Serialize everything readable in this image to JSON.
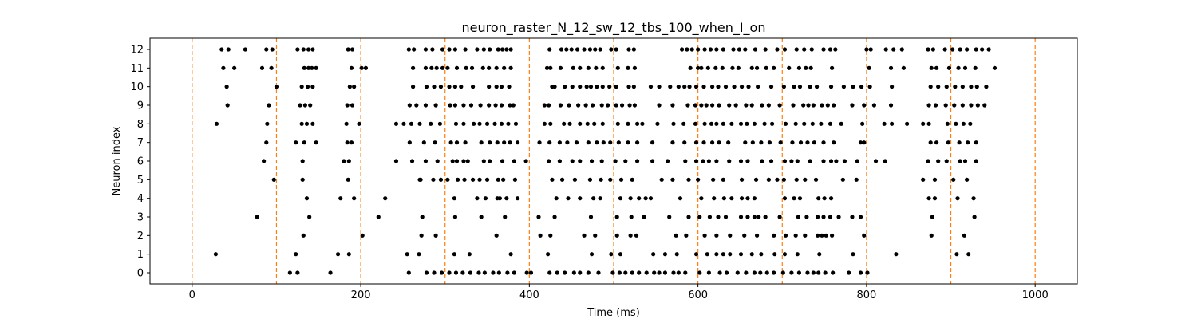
{
  "chart_data": {
    "type": "scatter",
    "title": "neuron_raster_N_12_sw_12_tbs_100_when_I_on",
    "xlabel": "Time (ms)",
    "ylabel": "Neuron index",
    "xlim": [
      -50,
      1050
    ],
    "ylim": [
      -0.6,
      12.6
    ],
    "xticks": [
      0,
      200,
      400,
      600,
      800,
      1000
    ],
    "yticks": [
      0,
      1,
      2,
      3,
      4,
      5,
      6,
      7,
      8,
      9,
      10,
      11,
      12
    ],
    "grid": false,
    "marker_color": "#000000",
    "vline_color": "#ff7f0e",
    "vlines": [
      0,
      100,
      200,
      300,
      400,
      500,
      600,
      700,
      800,
      900,
      1000
    ],
    "spikes": [
      {
        "neuron": 12,
        "times": [
          35,
          43,
          63,
          88,
          95,
          125,
          132,
          138,
          143,
          185,
          190,
          257,
          263,
          277,
          285,
          297,
          305,
          312,
          324,
          338,
          346,
          353,
          363,
          368,
          373,
          378,
          424,
          438,
          444,
          450,
          457,
          465,
          472,
          478,
          484,
          497,
          503,
          518,
          524,
          581,
          587,
          593,
          600,
          608,
          615,
          622,
          630,
          642,
          649,
          656,
          668,
          680,
          694,
          703,
          717,
          726,
          735,
          749,
          757,
          763,
          800,
          805,
          823,
          832,
          842,
          873,
          879,
          893,
          902,
          911,
          919,
          930,
          937,
          945
        ]
      },
      {
        "neuron": 11,
        "times": [
          37,
          50,
          83,
          94,
          133,
          138,
          142,
          147,
          189,
          201,
          206,
          262,
          277,
          284,
          290,
          297,
          303,
          314,
          325,
          332,
          345,
          352,
          361,
          370,
          378,
          421,
          425,
          437,
          452,
          460,
          470,
          479,
          487,
          505,
          517,
          525,
          591,
          600,
          604,
          612,
          621,
          629,
          641,
          648,
          664,
          670,
          681,
          690,
          708,
          720,
          728,
          734,
          759,
          803,
          829,
          844,
          877,
          883,
          898,
          909,
          917,
          929,
          952
        ]
      },
      {
        "neuron": 10,
        "times": [
          41,
          100,
          130,
          137,
          143,
          187,
          192,
          262,
          278,
          287,
          295,
          305,
          312,
          319,
          333,
          352,
          361,
          367,
          376,
          427,
          430,
          442,
          451,
          460,
          468,
          473,
          480,
          487,
          495,
          503,
          518,
          524,
          544,
          554,
          567,
          577,
          584,
          590,
          598,
          607,
          617,
          624,
          633,
          643,
          652,
          660,
          671,
          687,
          702,
          714,
          721,
          733,
          741,
          758,
          773,
          784,
          794,
          804,
          830,
          876,
          885,
          895,
          905,
          914,
          924,
          931,
          942
        ]
      },
      {
        "neuron": 9,
        "times": [
          42,
          91,
          128,
          134,
          140,
          184,
          190,
          258,
          266,
          277,
          289,
          306,
          312,
          322,
          331,
          342,
          352,
          360,
          367,
          377,
          381,
          418,
          423,
          437,
          447,
          458,
          467,
          475,
          486,
          493,
          503,
          510,
          519,
          525,
          554,
          570,
          588,
          597,
          604,
          610,
          617,
          625,
          637,
          645,
          657,
          664,
          676,
          684,
          697,
          713,
          725,
          731,
          737,
          747,
          754,
          761,
          783,
          797,
          809,
          829,
          874,
          882,
          894,
          904,
          914,
          924,
          932,
          940
        ]
      },
      {
        "neuron": 8,
        "times": [
          29,
          89,
          130,
          136,
          143,
          183,
          198,
          242,
          251,
          260,
          270,
          283,
          294,
          313,
          322,
          334,
          341,
          350,
          359,
          367,
          375,
          384,
          418,
          425,
          441,
          448,
          460,
          469,
          477,
          487,
          505,
          517,
          528,
          534,
          552,
          571,
          583,
          597,
          608,
          616,
          622,
          630,
          640,
          651,
          658,
          667,
          679,
          688,
          704,
          716,
          726,
          736,
          746,
          757,
          770,
          795,
          821,
          830,
          848,
          867,
          874,
          896,
          906,
          915,
          923
        ]
      },
      {
        "neuron": 7,
        "times": [
          88,
          123,
          133,
          147,
          184,
          189,
          258,
          275,
          288,
          307,
          314,
          324,
          343,
          353,
          362,
          370,
          377,
          386,
          412,
          424,
          436,
          445,
          456,
          470,
          480,
          488,
          496,
          506,
          517,
          528,
          546,
          570,
          584,
          598,
          607,
          617,
          625,
          636,
          656,
          665,
          675,
          685,
          698,
          712,
          722,
          730,
          738,
          749,
          761,
          793,
          797,
          876,
          883,
          897,
          910,
          920,
          930
        ]
      },
      {
        "neuron": 6,
        "times": [
          85,
          131,
          180,
          186,
          242,
          261,
          277,
          291,
          309,
          314,
          322,
          327,
          346,
          353,
          368,
          382,
          396,
          423,
          436,
          451,
          460,
          474,
          486,
          502,
          514,
          528,
          546,
          564,
          585,
          598,
          606,
          613,
          622,
          637,
          651,
          659,
          676,
          687,
          703,
          711,
          718,
          733,
          749,
          758,
          764,
          774,
          789,
          811,
          822,
          873,
          885,
          895,
          911,
          917,
          930
        ]
      },
      {
        "neuron": 5,
        "times": [
          97,
          131,
          185,
          270,
          271,
          286,
          295,
          303,
          315,
          323,
          333,
          341,
          350,
          363,
          369,
          383,
          427,
          439,
          454,
          472,
          485,
          496,
          509,
          522,
          557,
          570,
          589,
          600,
          618,
          630,
          652,
          669,
          684,
          694,
          702,
          717,
          727,
          740,
          772,
          788,
          867,
          881,
          903,
          919
        ]
      },
      {
        "neuron": 4,
        "times": [
          136,
          176,
          192,
          229,
          311,
          338,
          348,
          362,
          365,
          373,
          386,
          432,
          446,
          460,
          476,
          484,
          508,
          520,
          530,
          538,
          544,
          579,
          604,
          619,
          631,
          640,
          652,
          659,
          667,
          703,
          714,
          721,
          743,
          750,
          758,
          874,
          881,
          908,
          927
        ]
      },
      {
        "neuron": 3,
        "times": [
          77,
          139,
          221,
          273,
          312,
          343,
          371,
          411,
          430,
          473,
          504,
          521,
          536,
          566,
          589,
          602,
          614,
          624,
          633,
          651,
          659,
          667,
          672,
          680,
          697,
          719,
          729,
          742,
          749,
          757,
          767,
          783,
          793,
          878,
          928
        ]
      },
      {
        "neuron": 2,
        "times": [
          132,
          202,
          272,
          289,
          361,
          413,
          425,
          465,
          478,
          504,
          520,
          527,
          574,
          586,
          608,
          622,
          638,
          655,
          670,
          690,
          704,
          716,
          727,
          742,
          747,
          752,
          759,
          797,
          877,
          916
        ]
      },
      {
        "neuron": 1,
        "times": [
          28,
          123,
          173,
          186,
          255,
          269,
          311,
          329,
          378,
          422,
          474,
          497,
          508,
          547,
          561,
          575,
          598,
          611,
          622,
          630,
          638,
          651,
          664,
          675,
          691,
          703,
          718,
          744,
          784,
          835,
          907,
          921
        ]
      },
      {
        "neuron": 0,
        "times": [
          116,
          125,
          164,
          257,
          278,
          287,
          296,
          305,
          313,
          321,
          330,
          340,
          347,
          357,
          364,
          374,
          382,
          397,
          402,
          424,
          433,
          442,
          453,
          460,
          470,
          482,
          499,
          507,
          514,
          522,
          530,
          539,
          548,
          554,
          561,
          571,
          577,
          585,
          602,
          613,
          626,
          634,
          647,
          657,
          667,
          674,
          682,
          690,
          701,
          711,
          720,
          730,
          737,
          743,
          751,
          760,
          779,
          793,
          801
        ]
      }
    ]
  }
}
